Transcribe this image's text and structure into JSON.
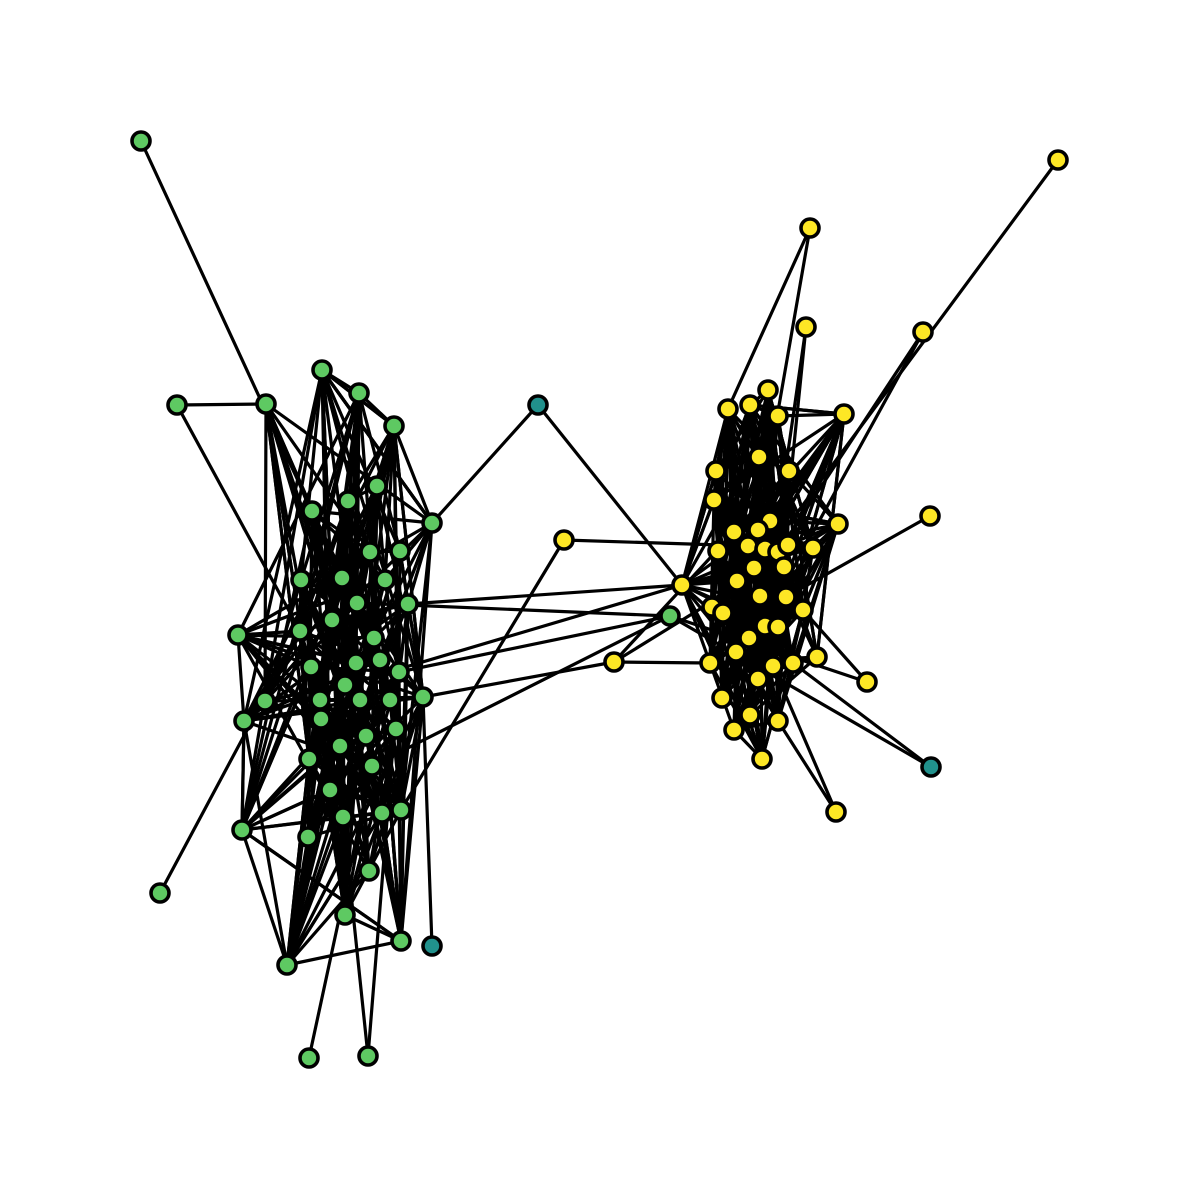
{
  "graph": {
    "type": "network",
    "colors": {
      "edge": "#000000",
      "node_outline": "#000000",
      "background": "#ffffff"
    },
    "groups": [
      {
        "id": "green",
        "color": "#5ec962"
      },
      {
        "id": "teal",
        "color": "#21918c"
      },
      {
        "id": "yellow",
        "color": "#fde725"
      }
    ],
    "node_count": 102,
    "group_counts": {
      "green": 52,
      "teal": 3,
      "yellow": 47
    }
  }
}
